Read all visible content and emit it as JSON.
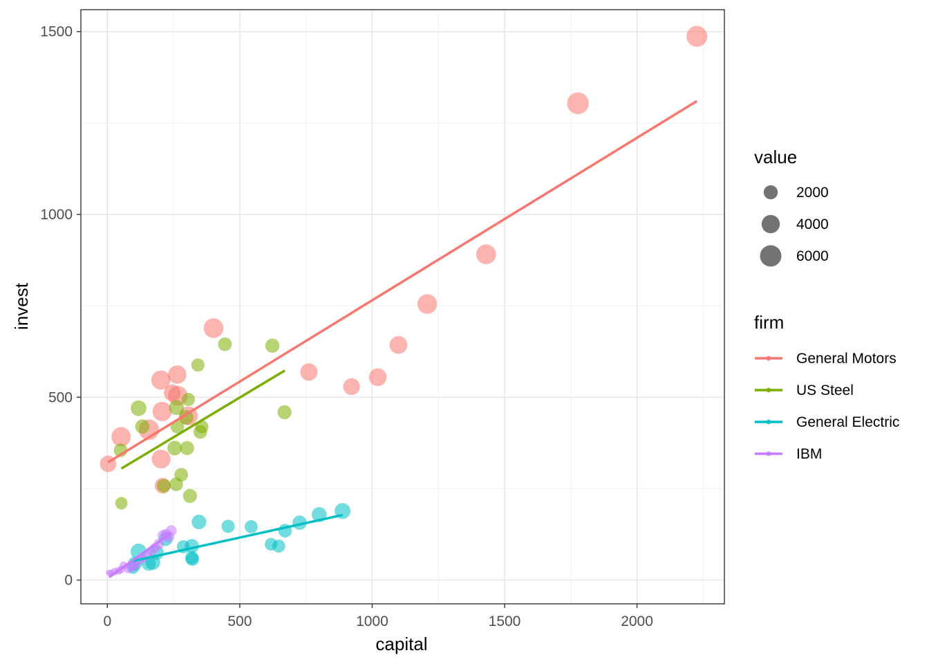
{
  "chart_data": {
    "type": "scatter",
    "title": "",
    "xlabel": "capital",
    "ylabel": "invest",
    "xlim": [
      -100,
      2330
    ],
    "ylim": [
      -65,
      1560
    ],
    "x_ticks": [
      0,
      500,
      1000,
      1500,
      2000
    ],
    "y_ticks": [
      0,
      500,
      1000,
      1500
    ],
    "x_tick_labels": [
      "0",
      "500",
      "1000",
      "1500",
      "2000"
    ],
    "y_tick_labels": [
      "0",
      "500",
      "1000",
      "1500"
    ],
    "grid": true,
    "legend_placement": "right",
    "size_legend": {
      "title": "value",
      "entries": [
        {
          "label": "2000",
          "value": 2000
        },
        {
          "label": "4000",
          "value": 4000
        },
        {
          "label": "6000",
          "value": 6000
        }
      ]
    },
    "color_legend": {
      "title": "firm"
    },
    "series": [
      {
        "name": "General Motors",
        "color": "#F8766D",
        "fit": {
          "x": [
            3,
            2226
          ],
          "y": [
            322,
            1310
          ]
        },
        "points": [
          {
            "x": 3,
            "y": 318,
            "value": 3078
          },
          {
            "x": 52,
            "y": 392,
            "value": 4662
          },
          {
            "x": 157,
            "y": 411,
            "value": 5387
          },
          {
            "x": 209,
            "y": 258,
            "value": 2792
          },
          {
            "x": 203,
            "y": 331,
            "value": 4313
          },
          {
            "x": 207,
            "y": 461,
            "value": 4644
          },
          {
            "x": 202,
            "y": 547,
            "value": 4551
          },
          {
            "x": 245,
            "y": 512,
            "value": 3244
          },
          {
            "x": 264,
            "y": 562,
            "value": 4053
          },
          {
            "x": 306,
            "y": 449,
            "value": 4379
          },
          {
            "x": 266,
            "y": 504,
            "value": 4840
          },
          {
            "x": 401,
            "y": 689,
            "value": 4901
          },
          {
            "x": 761,
            "y": 569,
            "value": 3526
          },
          {
            "x": 922,
            "y": 529,
            "value": 3255
          },
          {
            "x": 1021,
            "y": 555,
            "value": 3700
          },
          {
            "x": 1099,
            "y": 643,
            "value": 3756
          },
          {
            "x": 1208,
            "y": 755,
            "value": 4833
          },
          {
            "x": 1430,
            "y": 891,
            "value": 4925
          },
          {
            "x": 1777,
            "y": 1304,
            "value": 6242
          },
          {
            "x": 2226,
            "y": 1487,
            "value": 5594
          }
        ]
      },
      {
        "name": "US Steel",
        "color": "#7CAE00",
        "fit": {
          "x": [
            53,
            670
          ],
          "y": [
            305,
            573
          ]
        },
        "points": [
          {
            "x": 53,
            "y": 210,
            "value": 1362
          },
          {
            "x": 50,
            "y": 355,
            "value": 1807
          },
          {
            "x": 118,
            "y": 470,
            "value": 2676
          },
          {
            "x": 260,
            "y": 262,
            "value": 1801
          },
          {
            "x": 312,
            "y": 230,
            "value": 1957
          },
          {
            "x": 254,
            "y": 361,
            "value": 2202
          },
          {
            "x": 261,
            "y": 472,
            "value": 2380
          },
          {
            "x": 298,
            "y": 445,
            "value": 2168
          },
          {
            "x": 301,
            "y": 361,
            "value": 1985
          },
          {
            "x": 279,
            "y": 288,
            "value": 1813
          },
          {
            "x": 213,
            "y": 258,
            "value": 1850
          },
          {
            "x": 132,
            "y": 420,
            "value": 2067
          },
          {
            "x": 264,
            "y": 420,
            "value": 1796
          },
          {
            "x": 306,
            "y": 494,
            "value": 1625
          },
          {
            "x": 351,
            "y": 405,
            "value": 1797
          },
          {
            "x": 357,
            "y": 419,
            "value": 1626
          },
          {
            "x": 342,
            "y": 588,
            "value": 1667
          },
          {
            "x": 444,
            "y": 645,
            "value": 1881
          },
          {
            "x": 623,
            "y": 641,
            "value": 2042
          },
          {
            "x": 669,
            "y": 459,
            "value": 1945
          }
        ]
      },
      {
        "name": "General Electric",
        "color": "#00BFC4",
        "fit": {
          "x": [
            97,
            888
          ],
          "y": [
            52,
            178
          ]
        },
        "points": [
          {
            "x": 97,
            "y": 33,
            "value": 1171
          },
          {
            "x": 104,
            "y": 45,
            "value": 2016
          },
          {
            "x": 118,
            "y": 78,
            "value": 2803
          },
          {
            "x": 156,
            "y": 45,
            "value": 2040
          },
          {
            "x": 172,
            "y": 48,
            "value": 2256
          },
          {
            "x": 186,
            "y": 75,
            "value": 2132
          },
          {
            "x": 220,
            "y": 112,
            "value": 1834
          },
          {
            "x": 287,
            "y": 91,
            "value": 1588
          },
          {
            "x": 319,
            "y": 61,
            "value": 1749
          },
          {
            "x": 321,
            "y": 57,
            "value": 1687
          },
          {
            "x": 319,
            "y": 93,
            "value": 2008
          },
          {
            "x": 346,
            "y": 159,
            "value": 2208
          },
          {
            "x": 456,
            "y": 147,
            "value": 1657
          },
          {
            "x": 543,
            "y": 146,
            "value": 1604
          },
          {
            "x": 618,
            "y": 98,
            "value": 1432
          },
          {
            "x": 647,
            "y": 93,
            "value": 1610
          },
          {
            "x": 671,
            "y": 135,
            "value": 1819
          },
          {
            "x": 726,
            "y": 157,
            "value": 2080
          },
          {
            "x": 800,
            "y": 179,
            "value": 2372
          },
          {
            "x": 888,
            "y": 189,
            "value": 2760
          }
        ]
      },
      {
        "name": "IBM",
        "color": "#C77CFF",
        "fit": {
          "x": [
            7,
            240
          ],
          "y": [
            8,
            128
          ]
        },
        "points": [
          {
            "x": 6,
            "y": 20,
            "value": 100
          },
          {
            "x": 15,
            "y": 19,
            "value": 150
          },
          {
            "x": 27,
            "y": 23,
            "value": 210
          },
          {
            "x": 42,
            "y": 25,
            "value": 250
          },
          {
            "x": 52,
            "y": 29,
            "value": 300
          },
          {
            "x": 62,
            "y": 40,
            "value": 330
          },
          {
            "x": 79,
            "y": 30,
            "value": 360
          },
          {
            "x": 93,
            "y": 34,
            "value": 390
          },
          {
            "x": 101,
            "y": 38,
            "value": 420
          },
          {
            "x": 108,
            "y": 42,
            "value": 450
          },
          {
            "x": 120,
            "y": 55,
            "value": 500
          },
          {
            "x": 135,
            "y": 60,
            "value": 560
          },
          {
            "x": 150,
            "y": 68,
            "value": 620
          },
          {
            "x": 165,
            "y": 78,
            "value": 680
          },
          {
            "x": 180,
            "y": 88,
            "value": 740
          },
          {
            "x": 195,
            "y": 99,
            "value": 800
          },
          {
            "x": 210,
            "y": 122,
            "value": 880
          },
          {
            "x": 222,
            "y": 125,
            "value": 900
          },
          {
            "x": 232,
            "y": 118,
            "value": 920
          },
          {
            "x": 241,
            "y": 135,
            "value": 950
          }
        ]
      }
    ]
  }
}
